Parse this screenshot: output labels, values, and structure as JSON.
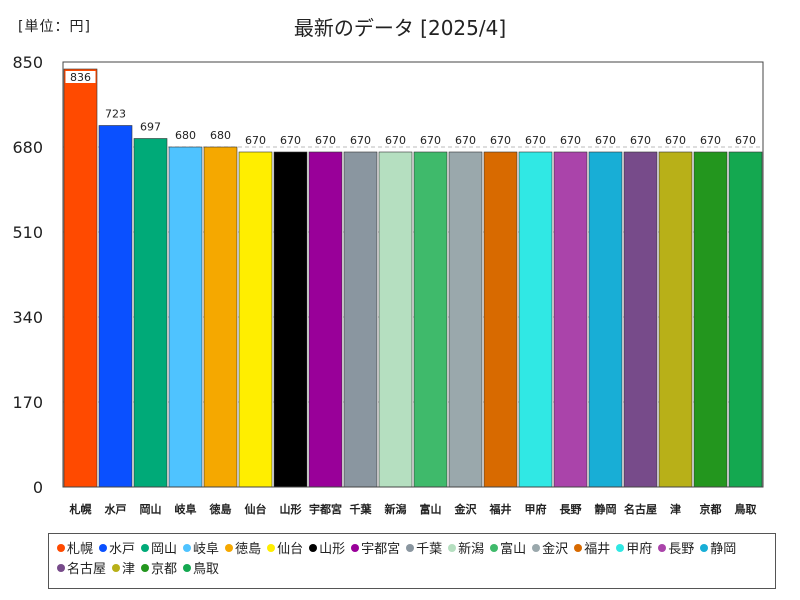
{
  "unit_label": "[単位：円]",
  "chart_data": {
    "type": "bar",
    "title": "最新のデータ [2025/4]",
    "xlabel": "",
    "ylabel": "",
    "ylim": [
      0,
      850
    ],
    "yticks": [
      0,
      170,
      340,
      510,
      680,
      850
    ],
    "grid": true,
    "legend_position": "bottom",
    "categories": [
      "札幌",
      "水戸",
      "岡山",
      "岐阜",
      "徳島",
      "仙台",
      "山形",
      "宇都宮",
      "千葉",
      "新潟",
      "富山",
      "金沢",
      "福井",
      "甲府",
      "長野",
      "静岡",
      "名古屋",
      "津",
      "京都",
      "鳥取"
    ],
    "values": [
      836,
      723,
      697,
      680,
      680,
      670,
      670,
      670,
      670,
      670,
      670,
      670,
      670,
      670,
      670,
      670,
      670,
      670,
      670,
      670
    ],
    "colors": [
      "#ff4a00",
      "#0a50ff",
      "#00aa78",
      "#4fc3ff",
      "#f5a800",
      "#ffee00",
      "#000000",
      "#990099",
      "#8a96a0",
      "#b5dfc0",
      "#3fba6b",
      "#9aa8ac",
      "#d86a00",
      "#30e8e4",
      "#aa44aa",
      "#18aed6",
      "#774b8a",
      "#b8b018",
      "#23961e",
      "#14a850"
    ]
  }
}
